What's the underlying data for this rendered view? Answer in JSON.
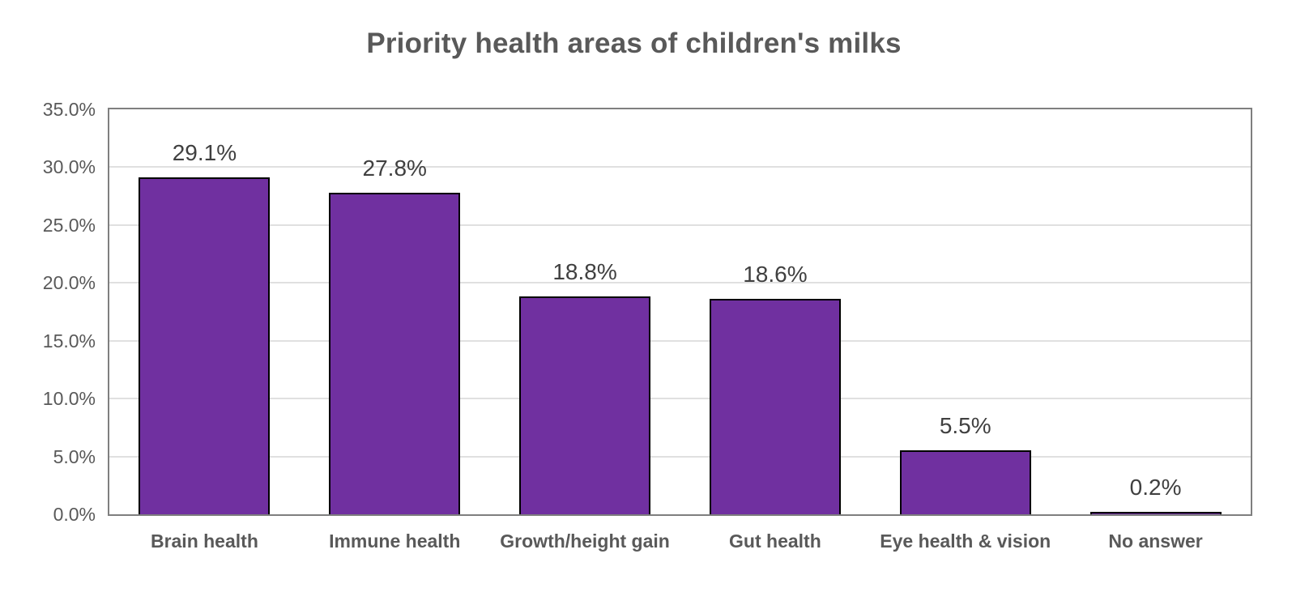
{
  "chart_data": {
    "type": "bar",
    "title": "Priority health areas of children's milks",
    "categories": [
      "Brain health",
      "Immune health",
      "Growth/height gain",
      "Gut health",
      "Eye health & vision",
      "No answer"
    ],
    "values": [
      29.1,
      27.8,
      18.8,
      18.6,
      5.5,
      0.2
    ],
    "value_labels": [
      "29.1%",
      "27.8%",
      "18.8%",
      "18.6%",
      "5.5%",
      "0.2%"
    ],
    "y_ticks": [
      "35.0%",
      "30.0%",
      "25.0%",
      "20.0%",
      "15.0%",
      "10.0%",
      "5.0%",
      "0.0%"
    ],
    "ylim": [
      0,
      35
    ],
    "xlabel": "",
    "ylabel": "",
    "grid": true,
    "legend": "none",
    "colors": {
      "bar_fill": "#7030A0",
      "bar_border": "#000000",
      "gridline": "#e0e0e0",
      "plot_border": "#7f7f7f",
      "title_text": "#595959",
      "value_label_text": "#404040",
      "axis_tick_text": "#595959",
      "category_text": "#595959"
    }
  }
}
